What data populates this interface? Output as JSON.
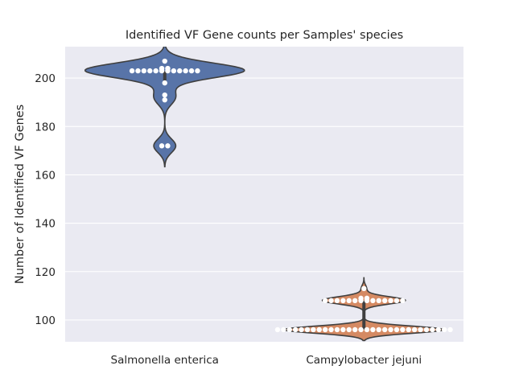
{
  "chart_data": {
    "type": "violin",
    "title": "Identified VF Gene counts per Samples' species",
    "xlabel": "",
    "ylabel": "Number of Identified VF Genes",
    "categories": [
      "Salmonella enterica",
      "Campylobacter jejuni"
    ],
    "ylim": [
      91,
      213
    ],
    "yticks": [
      100,
      120,
      140,
      160,
      180,
      200
    ],
    "grid": true,
    "background_color": "#EAEAF2",
    "colors": [
      "#5874A8",
      "#D58A63"
    ],
    "series": [
      {
        "category": "Salmonella enterica",
        "color": "#5874A8",
        "points": [
          172,
          172,
          191,
          193,
          198,
          203,
          203,
          203,
          203,
          203,
          203,
          203,
          203,
          203,
          203,
          203,
          203,
          204,
          204,
          207
        ],
        "median": 203,
        "q1": 199,
        "q3": 203
      },
      {
        "category": "Campylobacter jejuni",
        "color": "#D58A63",
        "points": [
          96,
          96,
          96,
          96,
          96,
          96,
          96,
          96,
          96,
          96,
          96,
          96,
          96,
          96,
          96,
          96,
          96,
          96,
          96,
          96,
          96,
          96,
          96,
          96,
          96,
          96,
          96,
          96,
          96,
          96,
          108,
          108,
          108,
          108,
          108,
          108,
          108,
          108,
          108,
          108,
          108,
          108,
          108,
          108,
          109,
          109,
          113
        ],
        "median": 96,
        "q1": 96,
        "q3": 108
      }
    ]
  }
}
